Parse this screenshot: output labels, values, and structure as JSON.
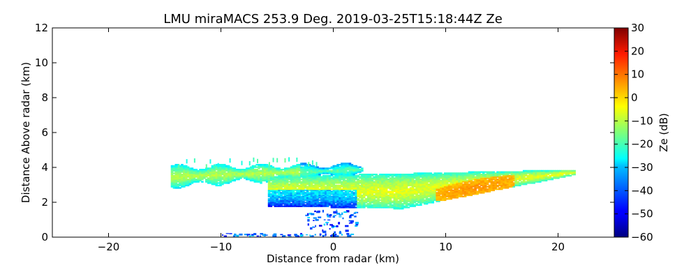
{
  "chart_data": {
    "type": "heatmap",
    "title": "LMU miraMACS 253.9 Deg. 2019-03-25T15:18:44Z  Ze",
    "xlabel": "Distance from radar (km)",
    "ylabel": "Distance Above radar  (km)",
    "xlim": [
      -25,
      25
    ],
    "ylim": [
      0,
      12
    ],
    "x_ticks": [
      -20,
      -10,
      0,
      10,
      20
    ],
    "x_tick_labels": [
      "−20",
      "−10",
      "0",
      "10",
      "20"
    ],
    "y_ticks": [
      0,
      2,
      4,
      6,
      8,
      10,
      12
    ],
    "y_tick_labels": [
      "0",
      "2",
      "4",
      "6",
      "8",
      "10",
      "12"
    ],
    "grid": false,
    "colorbar": {
      "label": "Ze (dB)",
      "colormap": "jet",
      "range": [
        -60,
        30
      ],
      "ticks": [
        30,
        20,
        10,
        0,
        -10,
        -20,
        -30,
        -40,
        -50,
        -60
      ],
      "tick_labels": [
        "30",
        "20",
        "10",
        "0",
        "−10",
        "−20",
        "−30",
        "−40",
        "−50",
        "−60"
      ]
    },
    "echo_regions": [
      {
        "name": "upper-left band",
        "x_range": [
          -14.5,
          2.5
        ],
        "y_range": [
          2.7,
          4.5
        ],
        "typical_ze_db": -18
      },
      {
        "name": "main slanted band",
        "x_range": [
          -6,
          21.5
        ],
        "y_range": [
          1.6,
          4.0
        ],
        "typical_ze_db": -12,
        "max_ze_db": 3
      },
      {
        "name": "core",
        "x_range": [
          9,
          16
        ],
        "y_range": [
          2.4,
          3.2
        ],
        "typical_ze_db": 2
      },
      {
        "name": "near-surface clutter",
        "x_range": [
          -10,
          2
        ],
        "y_range": [
          0,
          1.5
        ],
        "typical_ze_db": -40
      }
    ]
  }
}
